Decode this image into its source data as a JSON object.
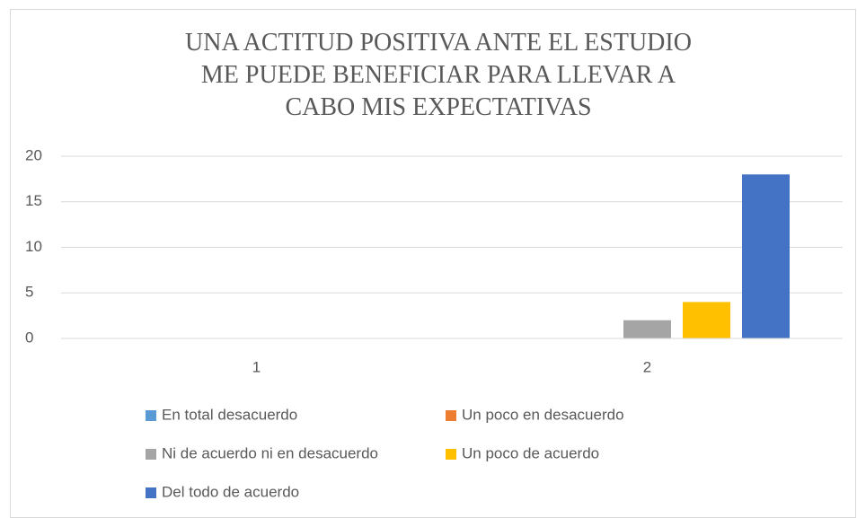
{
  "chart_data": {
    "type": "bar",
    "title": "UNA ACTITUD POSITIVA ANTE EL ESTUDIO ME PUEDE BENEFICIAR PARA LLEVAR A CABO MIS EXPECTATIVAS",
    "categories": [
      "1",
      "2"
    ],
    "series": [
      {
        "name": "En total desacuerdo",
        "color": "#5b9bd5",
        "values": [
          0,
          0
        ]
      },
      {
        "name": "Un poco en desacuerdo",
        "color": "#ed7d31",
        "values": [
          0,
          0
        ]
      },
      {
        "name": "Ni de acuerdo ni en desacuerdo",
        "color": "#a5a5a5",
        "values": [
          0,
          2
        ]
      },
      {
        "name": "Un poco de acuerdo",
        "color": "#ffc000",
        "values": [
          0,
          4
        ]
      },
      {
        "name": "Del todo de acuerdo",
        "color": "#4472c4",
        "values": [
          0,
          18
        ]
      }
    ],
    "ylim": [
      0,
      20
    ],
    "yticks": [
      0,
      5,
      10,
      15,
      20
    ],
    "grid": true,
    "legend": "bottom"
  }
}
